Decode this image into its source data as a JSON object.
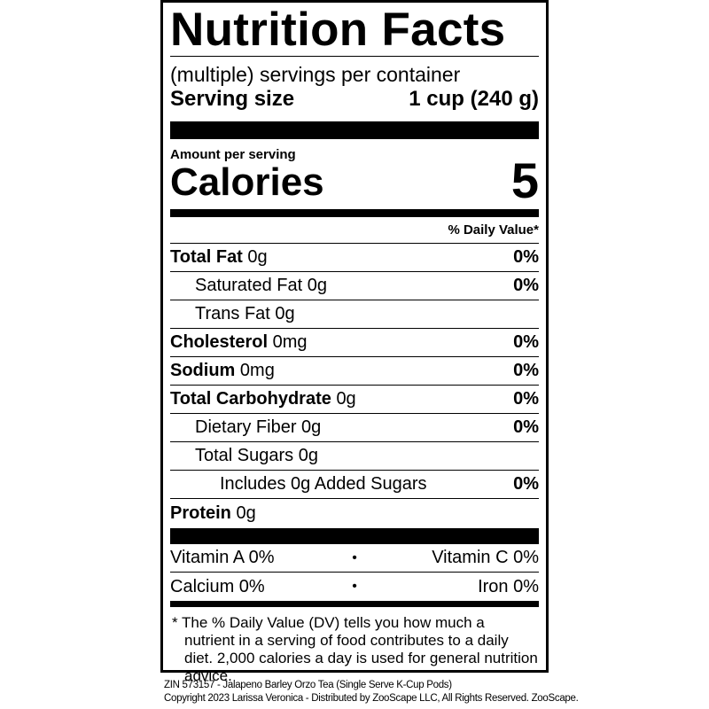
{
  "title": "Nutrition Facts",
  "servings_per_container": "(multiple) servings per container",
  "serving_size": {
    "label": "Serving size",
    "value": "1 cup (240 g)"
  },
  "amount_per_serving": "Amount per serving",
  "calories": {
    "label": "Calories",
    "value": "5"
  },
  "daily_value_header": "% Daily Value*",
  "nutrients": [
    {
      "name": "Total Fat",
      "amount": "0g",
      "dv": "0%",
      "bold": true,
      "indent": 0
    },
    {
      "name": "Saturated Fat",
      "amount": "0g",
      "dv": "0%",
      "bold": false,
      "indent": 1
    },
    {
      "name": "Trans Fat",
      "amount": "0g",
      "dv": "",
      "bold": false,
      "indent": 1
    },
    {
      "name": "Cholesterol",
      "amount": "0mg",
      "dv": "0%",
      "bold": true,
      "indent": 0
    },
    {
      "name": "Sodium",
      "amount": "0mg",
      "dv": "0%",
      "bold": true,
      "indent": 0
    },
    {
      "name": "Total Carbohydrate",
      "amount": "0g",
      "dv": "0%",
      "bold": true,
      "indent": 0
    },
    {
      "name": "Dietary Fiber",
      "amount": "0g",
      "dv": "0%",
      "bold": false,
      "indent": 1
    },
    {
      "name": "Total Sugars",
      "amount": "0g",
      "dv": "",
      "bold": false,
      "indent": 1
    },
    {
      "name": "Includes 0g Added Sugars",
      "amount": "",
      "dv": "0%",
      "bold": false,
      "indent": 2
    },
    {
      "name": "Protein",
      "amount": "0g",
      "dv": "",
      "bold": true,
      "indent": 0
    }
  ],
  "vitamins": [
    {
      "left": "Vitamin A 0%",
      "sep": "•",
      "right": "Vitamin C 0%"
    },
    {
      "left": "Calcium 0%",
      "sep": "•",
      "right": "Iron 0%"
    }
  ],
  "footnote": "* The % Daily Value (DV) tells you how much a nutrient in a serving of food contributes to a daily diet. 2,000 calories a day is used for general nutrition advice.",
  "credits": {
    "line1": "ZIN 573157 - Jalapeno Barley Orzo Tea (Single Serve K-Cup Pods)",
    "line2": "Copyright 2023 Larissa Veronica - Distributed by ZooScape LLC, All Rights Reserved. ZooScape."
  }
}
